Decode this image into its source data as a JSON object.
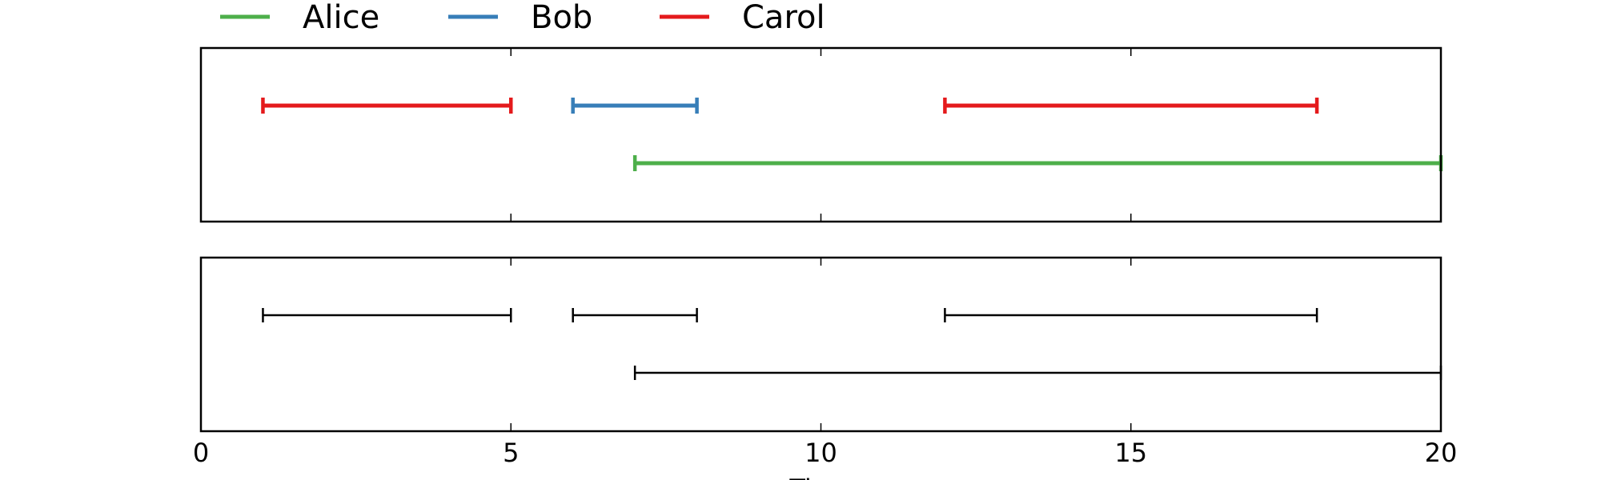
{
  "chart_data": {
    "type": "timeline",
    "xlim": [
      0,
      20
    ],
    "xticks": [
      0,
      5,
      10,
      15,
      20
    ],
    "xlabel": "Time",
    "legend": [
      {
        "name": "Alice",
        "color": "#4daf4a"
      },
      {
        "name": "Bob",
        "color": "#377eb8"
      },
      {
        "name": "Carol",
        "color": "#e41a1c"
      }
    ],
    "panels": [
      {
        "colored": true,
        "intervals": [
          {
            "person": "Carol",
            "row": 1,
            "start": 1,
            "end": 5
          },
          {
            "person": "Bob",
            "row": 1,
            "start": 6,
            "end": 8
          },
          {
            "person": "Carol",
            "row": 1,
            "start": 12,
            "end": 18
          },
          {
            "person": "Alice",
            "row": 0,
            "start": 7,
            "end": 20
          }
        ]
      },
      {
        "colored": false,
        "intervals": [
          {
            "row": 1,
            "start": 1,
            "end": 5
          },
          {
            "row": 1,
            "start": 6,
            "end": 8
          },
          {
            "row": 1,
            "start": 12,
            "end": 18
          },
          {
            "row": 0,
            "start": 7,
            "end": 20
          }
        ]
      }
    ]
  }
}
